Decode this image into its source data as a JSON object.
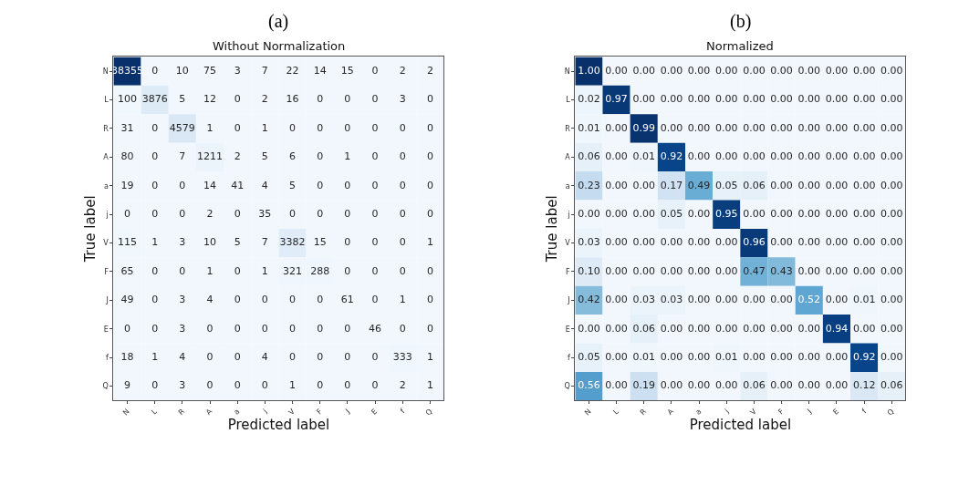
{
  "chart_data": [
    {
      "type": "heatmap",
      "title": "Without Normalization",
      "xlabel": "Predicted label",
      "ylabel": "True label",
      "annotations": [
        "(a)"
      ],
      "data_labels": true,
      "categories": [
        "N",
        "L",
        "R",
        "A",
        "a",
        "j",
        "V",
        "F",
        "J",
        "E",
        "f",
        "Q"
      ],
      "y_categories": [
        "N",
        "L",
        "R",
        "A",
        "a",
        "j",
        "V",
        "F",
        "J",
        "E",
        "f",
        "Q"
      ],
      "cells": [
        [
          38355,
          0,
          10,
          75,
          3,
          7,
          22,
          14,
          15,
          0,
          2,
          2
        ],
        [
          100,
          3876,
          5,
          12,
          0,
          2,
          16,
          0,
          0,
          0,
          3,
          0
        ],
        [
          31,
          0,
          4579,
          1,
          0,
          1,
          0,
          0,
          0,
          0,
          0,
          0
        ],
        [
          80,
          0,
          7,
          1211,
          2,
          5,
          6,
          0,
          1,
          0,
          0,
          0
        ],
        [
          19,
          0,
          0,
          14,
          41,
          4,
          5,
          0,
          0,
          0,
          0,
          0
        ],
        [
          0,
          0,
          0,
          2,
          0,
          35,
          0,
          0,
          0,
          0,
          0,
          0
        ],
        [
          115,
          1,
          3,
          10,
          5,
          7,
          3382,
          15,
          0,
          0,
          0,
          1
        ],
        [
          65,
          0,
          0,
          1,
          0,
          1,
          321,
          288,
          0,
          0,
          0,
          0
        ],
        [
          49,
          0,
          3,
          4,
          0,
          0,
          0,
          0,
          61,
          0,
          1,
          0
        ],
        [
          0,
          0,
          3,
          0,
          0,
          0,
          0,
          0,
          0,
          46,
          0,
          0
        ],
        [
          18,
          1,
          4,
          0,
          0,
          4,
          0,
          0,
          0,
          0,
          333,
          1
        ],
        [
          9,
          0,
          3,
          0,
          0,
          0,
          1,
          0,
          0,
          0,
          2,
          1
        ]
      ]
    },
    {
      "type": "heatmap",
      "title": "Normalized",
      "xlabel": "Predicted label",
      "ylabel": "True label",
      "annotations": [
        "(b)"
      ],
      "categories": [
        "N",
        "L",
        "R",
        "A",
        "a",
        "j",
        "V",
        "F",
        "J",
        "E",
        "f",
        "Q"
      ],
      "y_categories": [
        "N",
        "L",
        "R",
        "A",
        "a",
        "j",
        "V",
        "F",
        "J",
        "E",
        "f",
        "Q"
      ],
      "cells": [
        [
          1.0,
          0,
          0,
          0,
          0,
          0,
          0,
          0,
          0,
          0,
          0,
          0
        ],
        [
          0.02,
          0.97,
          0,
          0,
          0,
          0,
          0,
          0,
          0,
          0,
          0,
          0
        ],
        [
          0.01,
          0,
          0.99,
          0,
          0,
          0,
          0,
          0,
          0,
          0,
          0,
          0
        ],
        [
          0.06,
          0,
          0.01,
          0.92,
          0,
          0,
          0,
          0,
          0,
          0,
          0,
          0
        ],
        [
          0.23,
          0,
          0,
          0.17,
          0.49,
          0.05,
          0.06,
          0,
          0,
          0,
          0,
          0
        ],
        [
          0,
          0,
          0,
          0.05,
          0,
          0.95,
          0,
          0,
          0,
          0,
          0,
          0
        ],
        [
          0.03,
          0,
          0,
          0,
          0,
          0,
          0.96,
          0,
          0,
          0,
          0,
          0
        ],
        [
          0.1,
          0,
          0,
          0,
          0,
          0,
          0.47,
          0.43,
          0,
          0,
          0,
          0
        ],
        [
          0.42,
          0,
          0.03,
          0.03,
          0,
          0,
          0,
          0,
          0.52,
          0,
          0.01,
          0
        ],
        [
          0,
          0,
          0.06,
          0,
          0,
          0,
          0,
          0,
          0,
          0.94,
          0,
          0
        ],
        [
          0.05,
          0,
          0.01,
          0,
          0,
          0.01,
          0,
          0,
          0,
          0,
          0.92,
          0
        ],
        [
          0.56,
          0,
          0.19,
          0,
          0,
          0,
          0.06,
          0,
          0,
          0,
          0.12,
          0.06
        ]
      ],
      "cell_labels": [
        [
          "1.00",
          "0.00",
          "0.00",
          "0.00",
          "0.00",
          "0.00",
          "0.00",
          "0.00",
          "0.00",
          "0.00",
          "0.00",
          "0.00"
        ],
        [
          "0.02",
          "0.97",
          "0.00",
          "0.00",
          "0.00",
          "0.00",
          "0.00",
          "0.00",
          "0.00",
          "0.00",
          "0.00",
          "0.00"
        ],
        [
          "0.01",
          "0.00",
          "0.99",
          "0.00",
          "0.00",
          "0.00",
          "0.00",
          "0.00",
          "0.00",
          "0.00",
          "0.00",
          "0.00"
        ],
        [
          "0.06",
          "0.00",
          "0.01",
          "0.92",
          "0.00",
          "0.00",
          "0.00",
          "0.00",
          "0.00",
          "0.00",
          "0.00",
          "0.00"
        ],
        [
          "0.23",
          "0.00",
          "0.00",
          "0.17",
          "0.49",
          "0.05",
          "0.06",
          "0.00",
          "0.00",
          "0.00",
          "0.00",
          "0.00"
        ],
        [
          "0.00",
          "0.00",
          "0.00",
          "0.05",
          "0.00",
          "0.95",
          "0.00",
          "0.00",
          "0.00",
          "0.00",
          "0.00",
          "0.00"
        ],
        [
          "0.03",
          "0.00",
          "0.00",
          "0.00",
          "0.00",
          "0.00",
          "0.96",
          "0.00",
          "0.00",
          "0.00",
          "0.00",
          "0.00"
        ],
        [
          "0.10",
          "0.00",
          "0.00",
          "0.00",
          "0.00",
          "0.00",
          "0.47",
          "0.43",
          "0.00",
          "0.00",
          "0.00",
          "0.00"
        ],
        [
          "0.42",
          "0.00",
          "0.03",
          "0.03",
          "0.00",
          "0.00",
          "0.00",
          "0.00",
          "0.52",
          "0.00",
          "0.01",
          "0.00"
        ],
        [
          "0.00",
          "0.00",
          "0.06",
          "0.00",
          "0.00",
          "0.00",
          "0.00",
          "0.00",
          "0.00",
          "0.94",
          "0.00",
          "0.00"
        ],
        [
          "0.05",
          "0.00",
          "0.01",
          "0.00",
          "0.00",
          "0.01",
          "0.00",
          "0.00",
          "0.00",
          "0.00",
          "0.92",
          "0.00"
        ],
        [
          "0.56",
          "0.00",
          "0.19",
          "0.00",
          "0.00",
          "0.00",
          "0.06",
          "0.00",
          "0.00",
          "0.00",
          "0.12",
          "0.06"
        ]
      ]
    }
  ]
}
